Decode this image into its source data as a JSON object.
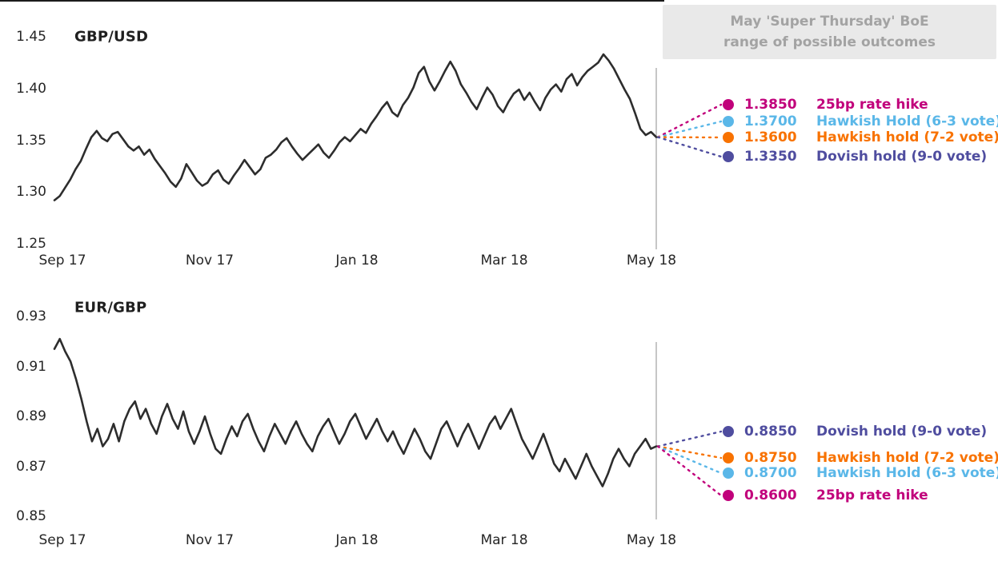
{
  "annotation_box": {
    "line1": "May 'Super Thursday' BoE",
    "line2": "range of possible outcomes"
  },
  "chart_data": [
    {
      "type": "line",
      "title": "GBP/USD",
      "xlabel": "",
      "ylabel": "",
      "ylim": [
        1.25,
        1.45
      ],
      "y_tick_labels": [
        "1.45",
        "1.40",
        "1.35",
        "1.30",
        "1.25"
      ],
      "x_ticks": [
        "Sep 17",
        "Nov 17",
        "Jan 18",
        "Mar 18",
        "May 18"
      ],
      "grid": false,
      "legend_position": "none",
      "line_color": "#2d2d2d",
      "divider_color": "#8c8c8c",
      "series": [
        {
          "name": "GBP/USD",
          "values": [
            1.292,
            1.296,
            1.304,
            1.312,
            1.322,
            1.33,
            1.342,
            1.353,
            1.359,
            1.352,
            1.349,
            1.356,
            1.358,
            1.351,
            1.344,
            1.34,
            1.344,
            1.336,
            1.341,
            1.332,
            1.325,
            1.318,
            1.31,
            1.305,
            1.313,
            1.327,
            1.319,
            1.311,
            1.306,
            1.309,
            1.317,
            1.321,
            1.312,
            1.308,
            1.316,
            1.323,
            1.331,
            1.324,
            1.317,
            1.322,
            1.333,
            1.336,
            1.341,
            1.348,
            1.352,
            1.344,
            1.337,
            1.331,
            1.336,
            1.341,
            1.346,
            1.338,
            1.333,
            1.34,
            1.348,
            1.353,
            1.349,
            1.355,
            1.361,
            1.357,
            1.366,
            1.373,
            1.381,
            1.387,
            1.377,
            1.373,
            1.384,
            1.391,
            1.401,
            1.415,
            1.421,
            1.407,
            1.398,
            1.407,
            1.417,
            1.426,
            1.417,
            1.404,
            1.396,
            1.387,
            1.38,
            1.391,
            1.401,
            1.394,
            1.383,
            1.377,
            1.387,
            1.395,
            1.399,
            1.389,
            1.396,
            1.387,
            1.379,
            1.391,
            1.399,
            1.404,
            1.397,
            1.409,
            1.414,
            1.403,
            1.411,
            1.417,
            1.421,
            1.425,
            1.433,
            1.427,
            1.419,
            1.409,
            1.399,
            1.39,
            1.376,
            1.361,
            1.355,
            1.358,
            1.353
          ]
        }
      ],
      "annotations": [
        {
          "value": "1.3850",
          "label": "25bp rate hike",
          "color": "#c1017b",
          "y_value": 1.385
        },
        {
          "value": "1.3700",
          "label": "Hawkish Hold (6-3 vote)",
          "color": "#5ab7e8",
          "y_value": 1.37
        },
        {
          "value": "1.3600",
          "label": "Hawkish hold (7-2 vote)",
          "color": "#f87200",
          "y_value": 1.36
        },
        {
          "value": "1.3350",
          "label": "Dovish hold (9-0 vote)",
          "color": "#4f4d9f",
          "y_value": 1.335
        }
      ]
    },
    {
      "type": "line",
      "title": "EUR/GBP",
      "xlabel": "",
      "ylabel": "",
      "ylim": [
        0.85,
        0.93
      ],
      "y_tick_labels": [
        "0.93",
        "0.91",
        "0.89",
        "0.87",
        "0.85"
      ],
      "x_ticks": [
        "Sep 17",
        "Nov 17",
        "Jan 18",
        "Mar 18",
        "May 18"
      ],
      "grid": false,
      "legend_position": "none",
      "line_color": "#2d2d2d",
      "divider_color": "#8c8c8c",
      "series": [
        {
          "name": "EUR/GBP",
          "values": [
            0.917,
            0.921,
            0.916,
            0.912,
            0.905,
            0.897,
            0.888,
            0.88,
            0.885,
            0.878,
            0.881,
            0.887,
            0.88,
            0.888,
            0.893,
            0.896,
            0.889,
            0.893,
            0.887,
            0.883,
            0.89,
            0.895,
            0.889,
            0.885,
            0.892,
            0.884,
            0.879,
            0.884,
            0.89,
            0.883,
            0.877,
            0.875,
            0.881,
            0.886,
            0.882,
            0.888,
            0.891,
            0.885,
            0.88,
            0.876,
            0.882,
            0.887,
            0.883,
            0.879,
            0.884,
            0.888,
            0.883,
            0.879,
            0.876,
            0.882,
            0.886,
            0.889,
            0.884,
            0.879,
            0.883,
            0.888,
            0.891,
            0.886,
            0.881,
            0.885,
            0.889,
            0.884,
            0.88,
            0.884,
            0.879,
            0.875,
            0.88,
            0.885,
            0.881,
            0.876,
            0.873,
            0.879,
            0.885,
            0.888,
            0.883,
            0.878,
            0.883,
            0.887,
            0.882,
            0.877,
            0.882,
            0.887,
            0.89,
            0.885,
            0.889,
            0.893,
            0.887,
            0.881,
            0.877,
            0.873,
            0.878,
            0.883,
            0.877,
            0.871,
            0.868,
            0.873,
            0.869,
            0.865,
            0.87,
            0.875,
            0.87,
            0.866,
            0.862,
            0.867,
            0.873,
            0.877,
            0.873,
            0.87,
            0.875,
            0.878,
            0.881,
            0.877,
            0.878
          ]
        }
      ],
      "annotations": [
        {
          "value": "0.8850",
          "label": "Dovish hold (9-0 vote)",
          "color": "#4f4d9f",
          "y_value": 0.885
        },
        {
          "value": "0.8750",
          "label": "Hawkish hold (7-2 vote)",
          "color": "#f87200",
          "y_value": 0.875
        },
        {
          "value": "0.8700",
          "label": "Hawkish Hold (6-3 vote)",
          "color": "#5ab7e8",
          "y_value": 0.87
        },
        {
          "value": "0.8600",
          "label": "25bp rate hike",
          "color": "#c1017b",
          "y_value": 0.86
        }
      ]
    }
  ]
}
